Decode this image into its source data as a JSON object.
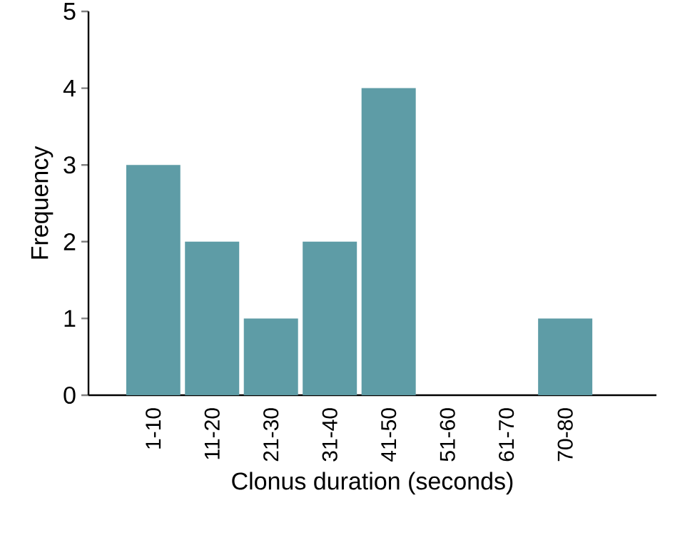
{
  "chart_data": {
    "type": "bar",
    "xlabel": "Clonus duration (seconds)",
    "ylabel": "Frequency",
    "categories": [
      "1-10",
      "11-20",
      "21-30",
      "31-40",
      "41-50",
      "51-60",
      "61-70",
      "70-80"
    ],
    "values": [
      3,
      2,
      1,
      2,
      4,
      0,
      0,
      1
    ],
    "color": "#5e9ca6",
    "ylim": [
      0,
      5
    ],
    "yticks": [
      0,
      1,
      2,
      3,
      4,
      5
    ],
    "grid": false
  }
}
